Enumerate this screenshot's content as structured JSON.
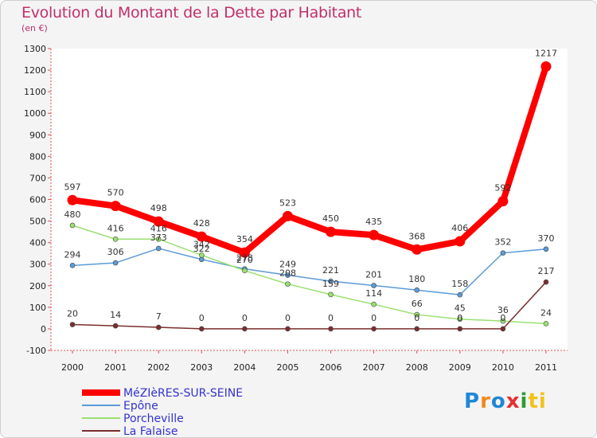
{
  "header": {
    "title": "Evolution du Montant de la Dette par Habitant",
    "unit": "(en €)"
  },
  "logo": {
    "text": "Proxiti",
    "letters": [
      "P",
      "r",
      "o",
      "x",
      "i",
      "ti"
    ]
  },
  "chart_data": {
    "type": "line",
    "title": "Evolution du Montant de la Dette par Habitant",
    "subtitle": "(en €)",
    "x": [
      "2000",
      "2001",
      "2002",
      "2003",
      "2004",
      "2005",
      "2006",
      "2007",
      "2008",
      "2009",
      "2010",
      "2011"
    ],
    "ylim": [
      -100,
      1300
    ],
    "yticks": [
      -100,
      0,
      100,
      200,
      300,
      400,
      500,
      600,
      700,
      800,
      900,
      1000,
      1100,
      1200,
      1300
    ],
    "grid": false,
    "legend": "bottom-left",
    "series": [
      {
        "name": "MéZIèRES-SUR-SEINE",
        "color": "#ff0000",
        "values": [
          597,
          570,
          498,
          428,
          354,
          523,
          450,
          435,
          368,
          406,
          592,
          1217
        ]
      },
      {
        "name": "Epône",
        "color": "#5b9bd5",
        "values": [
          294,
          306,
          373,
          322,
          278,
          249,
          221,
          201,
          180,
          158,
          352,
          370
        ]
      },
      {
        "name": "Porcheville",
        "color": "#9be070",
        "values": [
          480,
          416,
          416,
          342,
          270,
          208,
          159,
          114,
          66,
          45,
          36,
          24
        ]
      },
      {
        "name": "La Falaise",
        "color": "#7a2e2e",
        "values": [
          20,
          14,
          7,
          0,
          0,
          0,
          0,
          0,
          0,
          0,
          0,
          217
        ]
      }
    ]
  }
}
